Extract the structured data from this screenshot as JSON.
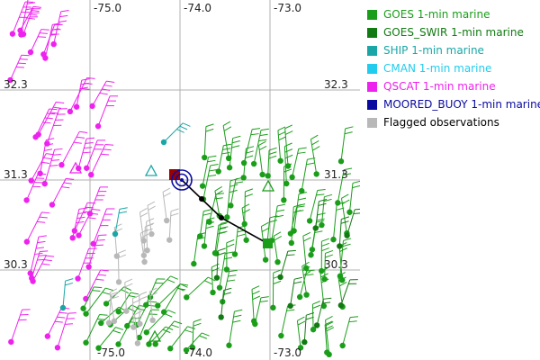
{
  "map": {
    "grid_longitudes": [
      "-75.0",
      "-74.0",
      "-73.0"
    ],
    "grid_latitudes": [
      "32.3",
      "31.3",
      "30.3"
    ],
    "colors": {
      "goes": "#1a9e1a",
      "goes_swir": "#127a12",
      "ship": "#1aa6a6",
      "cman": "#22ccee",
      "qscat": "#ee22ee",
      "moored_buoy": "#0a0aa0",
      "flagged": "#b8b8b8",
      "grid": "#b0b0b0",
      "track": "#000000",
      "start_marker": "#990000",
      "end_marker": "#1a9e1a",
      "storm_symbol": "#0a0aa0"
    }
  },
  "legend": {
    "items": [
      {
        "label": "GOES 1-min marine",
        "color": "#1a9e1a"
      },
      {
        "label": "GOES_SWIR 1-min marine",
        "color": "#127a12"
      },
      {
        "label": "SHIP 1-min marine",
        "color": "#1aa6a6"
      },
      {
        "label": "CMAN 1-min marine",
        "color": "#22ccee"
      },
      {
        "label": "QSCAT 1-min marine",
        "color": "#ee22ee"
      },
      {
        "label": "MOORED_BUOY 1-min marine",
        "color": "#0a0aa0"
      },
      {
        "label": "Flagged observations",
        "color": "#b8b8b8"
      }
    ]
  }
}
